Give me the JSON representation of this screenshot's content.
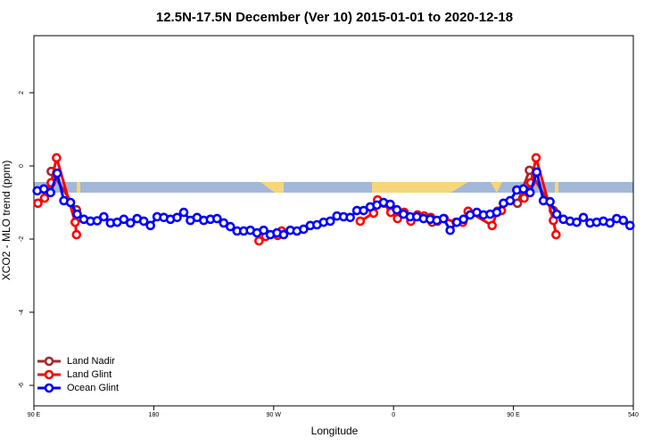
{
  "chart_data": {
    "type": "line",
    "title": "12.5N-17.5N December (Ver 10)   2015-01-01 to 2020-12-18",
    "x_label": "Longitude",
    "y_label": "XCO2 - MLO trend (ppm)",
    "xlim": [
      90,
      540
    ],
    "xticks": [
      {
        "value": 90,
        "label": "90 E"
      },
      180,
      {
        "value": 270,
        "label": "90 W"
      },
      {
        "value": 360,
        "label": "0"
      },
      {
        "value": 450,
        "label": "90 E"
      },
      540
    ],
    "ylim": [
      -6.56,
      3.56
    ],
    "yticks": [
      -6,
      -4,
      -2,
      0,
      2
    ],
    "legend": "bottomleft",
    "series": [
      {
        "name": "Land Nadir",
        "color": "#a52a2a",
        "x": [
          103,
          122,
          190,
          273,
          315,
          358,
          389,
          420,
          453,
          462,
          480
        ],
        "values": [
          -0.15,
          -1.2,
          null,
          -1.88,
          null,
          -1.15,
          -1.54,
          null,
          -1.02,
          -0.12,
          -1.22
        ]
      },
      {
        "name": "Land Glint",
        "color": "#ff0000",
        "x": [
          93,
          98,
          103,
          107,
          121,
          122,
          190,
          259,
          264,
          273,
          276,
          305,
          335,
          345,
          348,
          353,
          358,
          363,
          368,
          373,
          378,
          383,
          388,
          393,
          398,
          407,
          412,
          416,
          434,
          438,
          441,
          450,
          458,
          463,
          467,
          480,
          482
        ],
        "values": [
          -1.02,
          -0.88,
          -0.46,
          0.22,
          -1.54,
          -1.88,
          null,
          -2.05,
          -1.93,
          -1.9,
          -1.78,
          null,
          -1.51,
          -1.29,
          -0.93,
          -1.02,
          -1.27,
          -1.44,
          -1.27,
          -1.51,
          -1.34,
          -1.37,
          -1.41,
          -1.51,
          -1.44,
          -1.54,
          -1.54,
          -1.24,
          -1.63,
          -1.24,
          -1.22,
          null,
          -0.88,
          -0.46,
          0.22,
          -1.49,
          -1.88
        ]
      },
      {
        "name": "Ocean Glint",
        "color": "#0000ff",
        "x": [
          92.5,
          97.5,
          102.5,
          107.5,
          112.5,
          117.5,
          122.5,
          127.5,
          132.5,
          137.5,
          142.5,
          147.5,
          152.5,
          157.5,
          162.5,
          167.5,
          172.5,
          177.5,
          182.5,
          187.5,
          192.5,
          197.5,
          202.5,
          207.5,
          212.5,
          217.5,
          222.5,
          227.5,
          232.5,
          237.5,
          242.5,
          247.5,
          252.5,
          257.5,
          262.5,
          267.5,
          272.5,
          277.5,
          282.5,
          287.5,
          292.5,
          297.5,
          302.5,
          307.5,
          312.5,
          317.5,
          322.5,
          327.5,
          332.5,
          337.5,
          342.5,
          347.5,
          352.5,
          357.5,
          362.5,
          367.5,
          372.5,
          377.5,
          382.5,
          387.5,
          392.5,
          397.5,
          402.5,
          407.5,
          412.5,
          417.5,
          422.5,
          427.5,
          432.5,
          437.5,
          442.5,
          447.5,
          452.5,
          457.5,
          462.5,
          467.5,
          472.5,
          477.5,
          482.5,
          487.5,
          492.5,
          497.5,
          502.5,
          507.5,
          512.5,
          517.5,
          522.5,
          527.5,
          532.5,
          537.5
        ],
        "values": [
          -0.68,
          -0.63,
          -0.73,
          -0.2,
          -0.95,
          -1.0,
          -1.32,
          -1.46,
          -1.51,
          -1.5,
          -1.39,
          -1.56,
          -1.54,
          -1.46,
          -1.56,
          -1.44,
          -1.51,
          -1.63,
          -1.39,
          -1.41,
          -1.46,
          -1.41,
          -1.27,
          -1.49,
          -1.41,
          -1.49,
          -1.46,
          -1.44,
          -1.56,
          -1.66,
          -1.78,
          -1.78,
          -1.76,
          -1.83,
          -1.76,
          -1.88,
          -1.83,
          -1.88,
          -1.76,
          -1.78,
          -1.73,
          -1.63,
          -1.61,
          -1.54,
          -1.51,
          -1.37,
          -1.39,
          -1.41,
          -1.22,
          -1.22,
          -1.12,
          -1.07,
          -1.0,
          -1.05,
          -1.2,
          -1.32,
          -1.39,
          -1.39,
          -1.44,
          -1.46,
          -1.49,
          -1.44,
          -1.76,
          -1.54,
          -1.46,
          -1.34,
          -1.27,
          -1.34,
          -1.32,
          -1.27,
          -1.02,
          -0.95,
          -0.66,
          -0.63,
          -0.73,
          -0.17,
          -0.95,
          -0.98,
          -1.32,
          -1.46,
          -1.51,
          -1.54,
          -1.41,
          -1.56,
          -1.54,
          -1.51,
          -1.56,
          -1.44,
          -1.49,
          -1.63
        ]
      }
    ]
  }
}
